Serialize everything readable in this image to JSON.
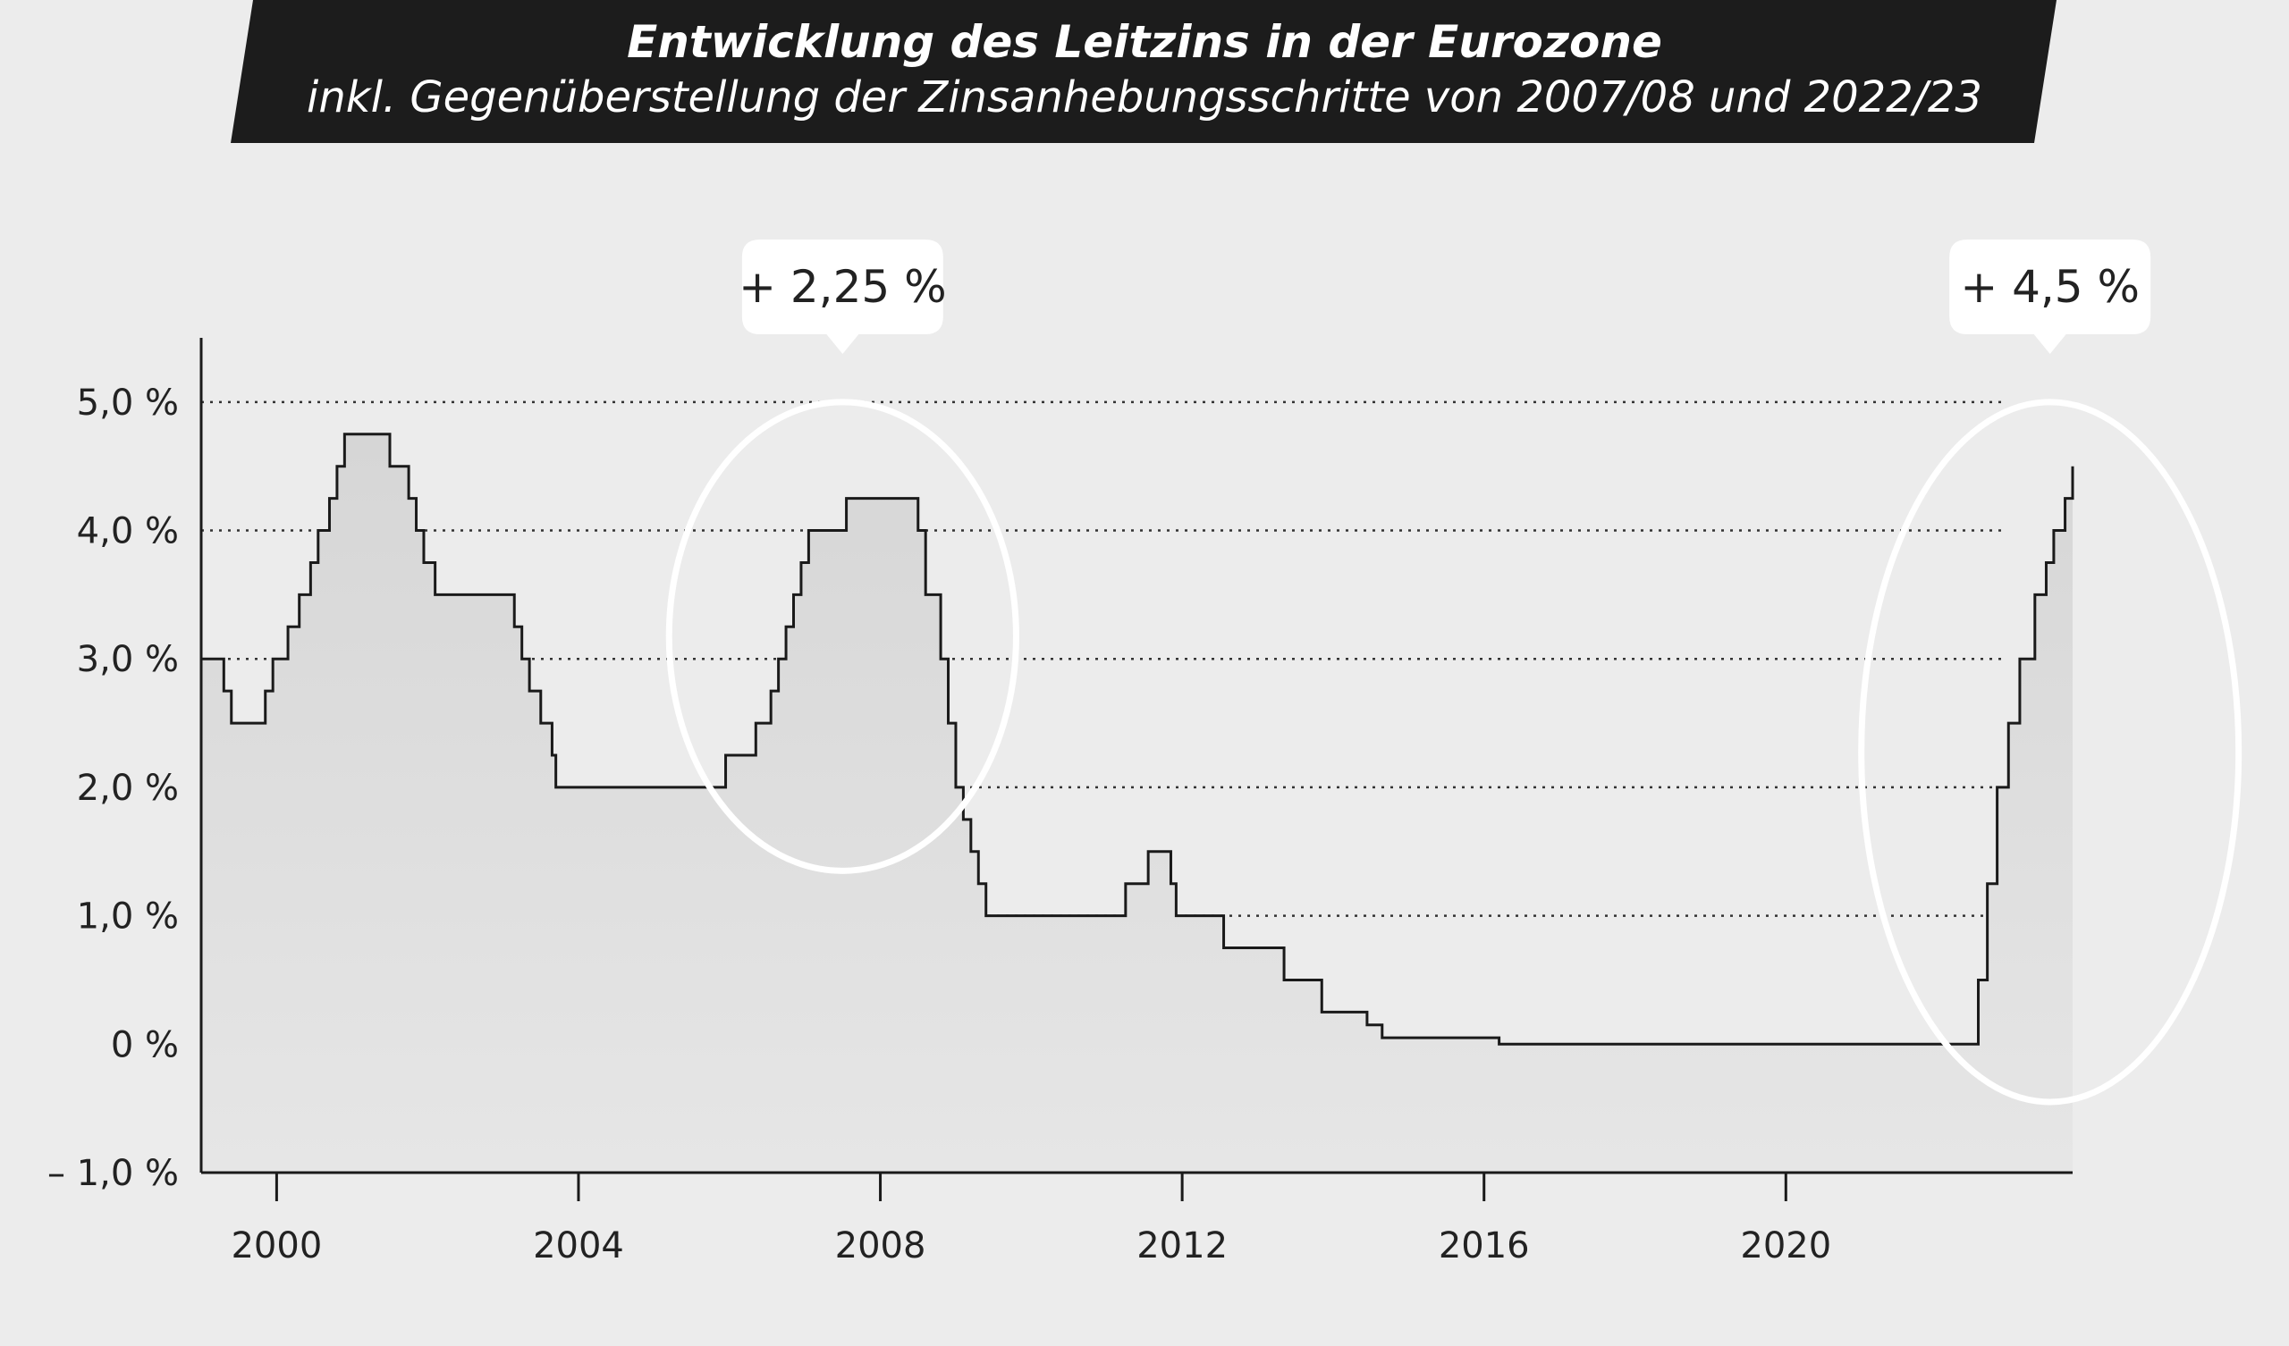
{
  "chart_data": {
    "type": "line",
    "title": "Entwicklung des Leitzins in der Eurozone",
    "subtitle": "inkl. Gegenüberstellung der Zinsanhebungsschritte von 2007/08 und 2022/23",
    "xlabel": "",
    "ylabel": "",
    "xlim": [
      1999.0,
      2023.8
    ],
    "ylim": [
      -1.0,
      5.5
    ],
    "x_ticks": [
      2000,
      2004,
      2008,
      2012,
      2016,
      2020
    ],
    "x_tick_labels": [
      "2000",
      "2004",
      "2008",
      "2012",
      "2016",
      "2020"
    ],
    "y_ticks": [
      -1.0,
      0.0,
      1.0,
      2.0,
      3.0,
      4.0,
      5.0
    ],
    "y_tick_labels": [
      "– 1,0 %",
      "0 %",
      "1,0 %",
      "2,0 %",
      "3,0 %",
      "4,0 %",
      "5,0 %"
    ],
    "gridlines": [
      0.0,
      1.0,
      2.0,
      3.0,
      4.0,
      5.0
    ],
    "series": [
      {
        "name": "Leitzins",
        "step": "post",
        "x": [
          1999.0,
          1999.3,
          1999.4,
          1999.85,
          1999.95,
          2000.05,
          2000.15,
          2000.3,
          2000.45,
          2000.55,
          2000.7,
          2000.8,
          2000.9,
          2001.35,
          2001.5,
          2001.75,
          2001.85,
          2001.95,
          2002.1,
          2003.15,
          2003.25,
          2003.35,
          2003.5,
          2003.65,
          2003.7,
          2005.95,
          2006.2,
          2006.35,
          2006.55,
          2006.65,
          2006.75,
          2006.85,
          2006.95,
          2007.05,
          2007.2,
          2007.35,
          2007.45,
          2007.55,
          2008.5,
          2008.6,
          2008.8,
          2008.9,
          2009.0,
          2009.1,
          2009.2,
          2009.3,
          2009.4,
          2009.5,
          2011.25,
          2011.55,
          2011.85,
          2011.92,
          2012.55,
          2013.35,
          2013.85,
          2014.45,
          2014.65,
          2016.2,
          2022.55,
          2022.67,
          2022.8,
          2022.95,
          2023.1,
          2023.3,
          2023.45,
          2023.55,
          2023.7,
          2023.8
        ],
        "values": [
          3.0,
          2.75,
          2.5,
          2.75,
          3.0,
          3.0,
          3.25,
          3.5,
          3.75,
          4.0,
          4.25,
          4.5,
          4.75,
          4.75,
          4.5,
          4.25,
          4.0,
          3.75,
          3.5,
          3.25,
          3.0,
          2.75,
          2.5,
          2.25,
          2.0,
          2.25,
          2.25,
          2.5,
          2.75,
          3.0,
          3.25,
          3.5,
          3.75,
          4.0,
          4.0,
          4.0,
          4.0,
          4.25,
          4.0,
          3.5,
          3.0,
          2.5,
          2.0,
          1.75,
          1.5,
          1.25,
          1.0,
          1.0,
          1.25,
          1.5,
          1.25,
          1.0,
          0.75,
          0.5,
          0.25,
          0.15,
          0.05,
          0.0,
          0.5,
          1.25,
          2.0,
          2.5,
          3.0,
          3.5,
          3.75,
          4.0,
          4.25,
          4.5
        ]
      }
    ],
    "highlights": [
      {
        "label": "+ 2,25 %",
        "x_range": [
          2005.2,
          2009.8
        ],
        "y_range": [
          1.35,
          5.0
        ]
      },
      {
        "label": "+ 4,5 %",
        "x_range": [
          2021.0,
          2026.0
        ],
        "y_range": [
          -0.45,
          5.0
        ]
      }
    ]
  },
  "colors": {
    "background": "#ececec",
    "title_band": "#1c1c1c",
    "line": "#1a1a1a",
    "fill": "#dcdcdc",
    "grid": "#333333",
    "highlight": "#ffffff"
  }
}
